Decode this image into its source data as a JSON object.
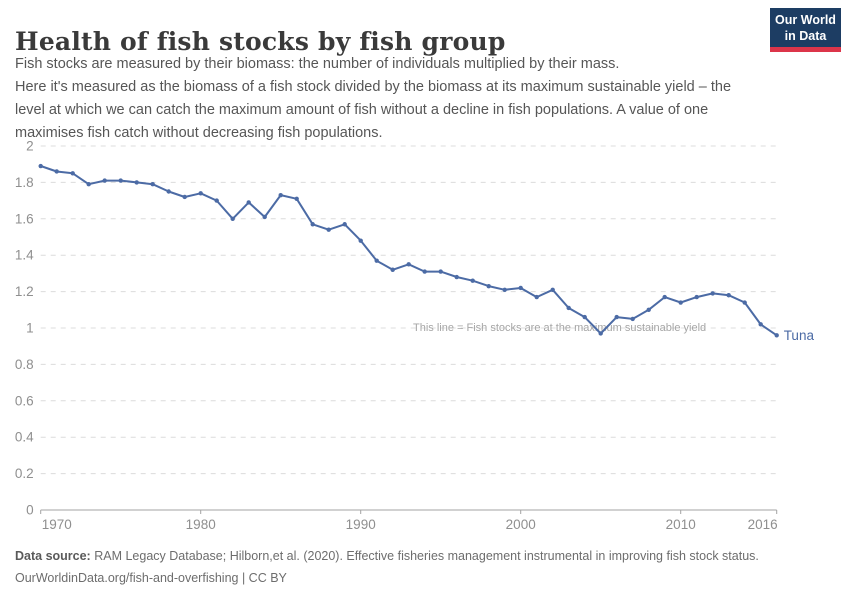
{
  "header": {
    "title": "Health of fish stocks by fish group",
    "subtitle_lines": [
      "Fish stocks are measured by their biomass: the number of individuals multiplied by their mass.",
      "Here it's measured as the biomass of a fish stock divided by the biomass at its maximum sustainable yield – the",
      "level at which we can catch the maximum amount of fish without a decline in fish populations. A value of one",
      "maximises fish catch without decreasing fish populations."
    ]
  },
  "logo": {
    "line1": "Our World",
    "line2": "in Data",
    "bg_color": "#1d3d63",
    "bar_color": "#dc354a"
  },
  "footer": {
    "source_label": "Data source:",
    "source_text": " RAM Legacy Database; Hilborn,et al. (2020). Effective fisheries management instrumental in improving fish stock status.",
    "link_line": "OurWorldinData.org/fish-and-overfishing | CC BY"
  },
  "chart_data": {
    "type": "line",
    "title": "Health of fish stocks by fish group",
    "xlabel": "",
    "ylabel": "",
    "xlim": [
      1970,
      2016
    ],
    "ylim": [
      0,
      2
    ],
    "grid": "horizontal-dashed",
    "x_ticks": [
      1970,
      1980,
      1990,
      2000,
      2010,
      2016
    ],
    "y_ticks": [
      2,
      1.8,
      1.6,
      1.4,
      1.2,
      1,
      0.8,
      0.6,
      0.4,
      0.2,
      0
    ],
    "annotation": "This line = Fish stocks are at the maximum sustainable yield",
    "annotation_value": 1,
    "line_color": "#4c6ba5",
    "grid_color": "#dcdcdc",
    "axis_color": "#a3a3a3",
    "tick_label_color": "#8f8f8f",
    "annotation_color": "#a6a6a6",
    "series": [
      {
        "name": "Tuna",
        "x": [
          1970,
          1971,
          1972,
          1973,
          1974,
          1975,
          1976,
          1977,
          1978,
          1979,
          1980,
          1981,
          1982,
          1983,
          1984,
          1985,
          1986,
          1987,
          1988,
          1989,
          1990,
          1991,
          1992,
          1993,
          1994,
          1995,
          1996,
          1997,
          1998,
          1999,
          2000,
          2001,
          2002,
          2003,
          2004,
          2005,
          2006,
          2007,
          2008,
          2009,
          2010,
          2011,
          2012,
          2013,
          2014,
          2015,
          2016
        ],
        "values": [
          1.89,
          1.86,
          1.85,
          1.79,
          1.81,
          1.81,
          1.8,
          1.79,
          1.75,
          1.72,
          1.74,
          1.7,
          1.6,
          1.69,
          1.61,
          1.73,
          1.71,
          1.57,
          1.54,
          1.57,
          1.48,
          1.37,
          1.32,
          1.35,
          1.31,
          1.31,
          1.28,
          1.26,
          1.23,
          1.21,
          1.22,
          1.17,
          1.21,
          1.11,
          1.06,
          0.97,
          1.06,
          1.05,
          1.1,
          1.17,
          1.14,
          1.17,
          1.19,
          1.18,
          1.14,
          1.02,
          0.96
        ]
      }
    ]
  }
}
